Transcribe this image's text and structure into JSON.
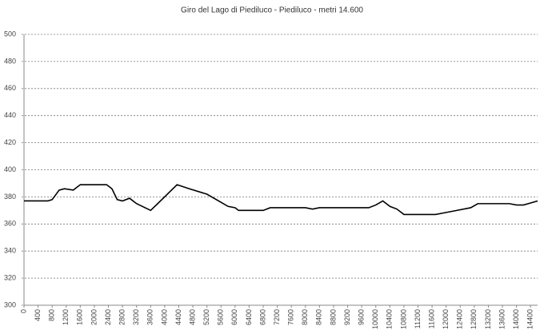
{
  "chart_data": {
    "type": "line",
    "title": "Giro del Lago di Piediluco - Piediluco - metri 14.600",
    "x": [
      0,
      680,
      800,
      1000,
      1150,
      1400,
      1600,
      1700,
      2350,
      2500,
      2650,
      2800,
      3000,
      3200,
      3600,
      3800,
      4350,
      4700,
      5200,
      5800,
      6000,
      6100,
      6800,
      7000,
      8000,
      8200,
      8400,
      9800,
      10000,
      10200,
      10400,
      10600,
      10800,
      11000,
      11700,
      11900,
      12300,
      12700,
      12900,
      13800,
      14000,
      14200,
      14600
    ],
    "series": [
      {
        "color": "#000000",
        "values": [
          377,
          377,
          378,
          385,
          386,
          385,
          389,
          389,
          389,
          386,
          378,
          377,
          379,
          375,
          370,
          375,
          389,
          386,
          382,
          373,
          372,
          370,
          370,
          372,
          372,
          371,
          372,
          372,
          374,
          377,
          373,
          371,
          367,
          367,
          367,
          368,
          370,
          372,
          375,
          375,
          374,
          374,
          377
        ]
      }
    ],
    "xlim": [
      0,
      14600
    ],
    "xticks": [
      0,
      400,
      800,
      1200,
      1600,
      2000,
      2400,
      2800,
      3200,
      3600,
      4000,
      4400,
      4800,
      5200,
      5600,
      6000,
      6400,
      6800,
      7200,
      7600,
      8000,
      8400,
      8800,
      9200,
      9600,
      10000,
      10400,
      10800,
      11200,
      11600,
      12000,
      12400,
      12800,
      13200,
      13600,
      14000,
      14400
    ],
    "ylim": [
      300,
      500
    ],
    "yticks": [
      300,
      320,
      340,
      360,
      380,
      400,
      420,
      440,
      460,
      480,
      500
    ],
    "grid": true
  }
}
